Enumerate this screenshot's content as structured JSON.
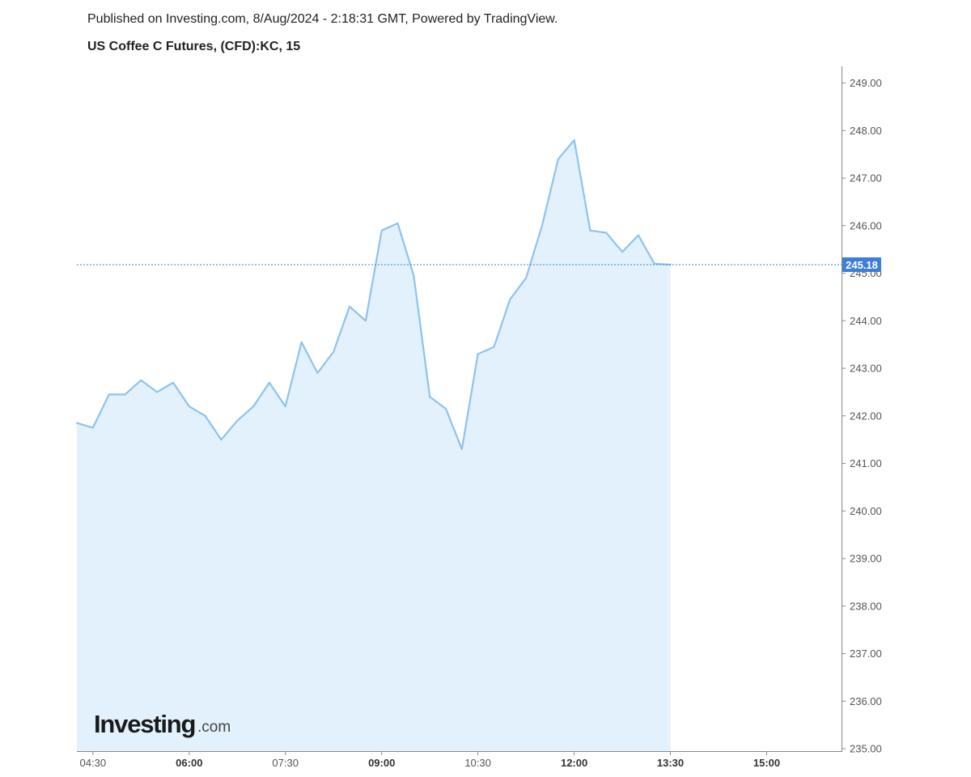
{
  "header": {
    "published": "Published on Investing.com, 8/Aug/2024 - 2:18:31 GMT, Powered by TradingView.",
    "title": "US Coffee C Futures, (CFD):KC, 15"
  },
  "logo": {
    "main": "Investing",
    "suffix": ".com"
  },
  "colors": {
    "line": "#8ec3ee",
    "fill": "#e2f1fb",
    "price_label_bg": "#3d7fd6",
    "price_line": "#3d7fd6",
    "axis": "#888888"
  },
  "chart_data": {
    "type": "area",
    "title": "US Coffee C Futures, (CFD):KC, 15",
    "x_tick_labels": [
      "04:30",
      "06:00",
      "07:30",
      "09:00",
      "10:30",
      "12:00",
      "13:30",
      "15:00"
    ],
    "bold_x_ticks": [
      "06:00",
      "09:00",
      "12:00",
      "13:30",
      "15:00"
    ],
    "y_tick_labels": [
      "249.00",
      "248.00",
      "247.00",
      "246.00",
      "245.00",
      "244.00",
      "243.00",
      "242.00",
      "241.00",
      "240.00",
      "239.00",
      "238.00",
      "237.00",
      "236.00",
      "235.00"
    ],
    "ylim": [
      234.95,
      249.35
    ],
    "last_price": 245.18,
    "last_price_label": "245.18",
    "interval_minutes": 15,
    "x_start": "04:15",
    "x_end": "16:10",
    "x": [
      "04:15",
      "04:30",
      "04:45",
      "05:00",
      "05:15",
      "05:30",
      "05:45",
      "06:00",
      "06:15",
      "06:30",
      "06:45",
      "07:00",
      "07:15",
      "07:30",
      "07:45",
      "08:00",
      "08:15",
      "08:30",
      "08:45",
      "09:00",
      "09:15",
      "09:30",
      "09:45",
      "10:00",
      "10:15",
      "10:30",
      "10:45",
      "11:00",
      "11:15",
      "11:30",
      "11:45",
      "12:00",
      "12:15",
      "12:30",
      "12:45",
      "13:00",
      "13:15",
      "13:30"
    ],
    "values": [
      241.85,
      241.75,
      242.45,
      242.45,
      242.75,
      242.5,
      242.7,
      242.2,
      242.0,
      241.5,
      241.9,
      242.2,
      242.7,
      242.2,
      243.55,
      242.9,
      243.35,
      244.3,
      244.0,
      245.9,
      246.05,
      244.95,
      242.4,
      242.15,
      241.3,
      243.3,
      243.45,
      244.45,
      244.9,
      246.0,
      247.4,
      247.8,
      245.9,
      245.85,
      245.45,
      245.8,
      245.2,
      245.18
    ],
    "xlabel": "",
    "ylabel": "",
    "grid": false,
    "legend": "none"
  }
}
